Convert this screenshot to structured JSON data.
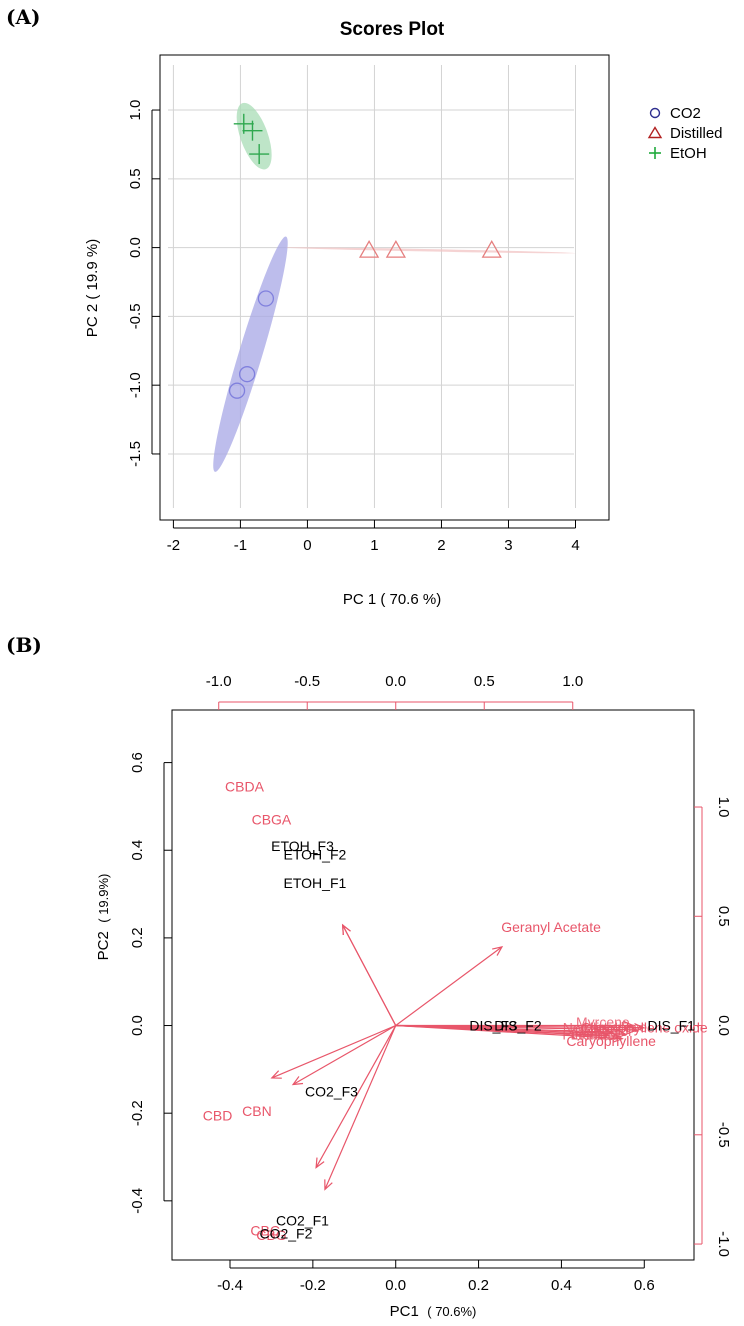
{
  "chart_data": [
    {
      "panel": "(A)",
      "type": "scatter",
      "title": "Scores Plot",
      "xlabel": "PC 1 ( 70.6 %)",
      "ylabel": "PC 2 ( 19.9 %)",
      "xlim": [
        -2.2,
        4.5
      ],
      "ylim": [
        -1.98,
        1.4
      ],
      "xticks": [
        "-2",
        "-1",
        "0",
        "1",
        "2",
        "3",
        "4"
      ],
      "yticks": [
        "-1.5",
        "-1.0",
        "-0.5",
        "0.0",
        "0.5",
        "1.0"
      ],
      "legend": {
        "position": "top-right",
        "entries": [
          {
            "label": "CO2",
            "symbol": "circle",
            "color": "#2e2e8f"
          },
          {
            "label": "Distilled",
            "symbol": "triangle",
            "color": "#b22222"
          },
          {
            "label": "EtOH",
            "symbol": "plus",
            "color": "#1faa3c"
          }
        ]
      },
      "series": [
        {
          "name": "CO2",
          "marker": "circle",
          "color": "#8080dd",
          "ellipse_fill": "#a7a7e6",
          "points": [
            {
              "x": -1.05,
              "y": -1.04
            },
            {
              "x": -0.9,
              "y": -0.92
            },
            {
              "x": -0.62,
              "y": -0.37
            }
          ],
          "ellipse_ends": [
            {
              "x": -1.38,
              "y": -1.63
            },
            {
              "x": -0.32,
              "y": 0.08
            }
          ],
          "ellipse_minor": 0.085
        },
        {
          "name": "Distilled",
          "marker": "triangle",
          "color": "#e57f7f",
          "ellipse_fill": "#f2c4c4",
          "points": [
            {
              "x": 0.92,
              "y": -0.02
            },
            {
              "x": 1.32,
              "y": -0.02
            },
            {
              "x": 2.75,
              "y": -0.02
            }
          ],
          "ellipse_ends": [
            {
              "x": -0.32,
              "y": 0.0
            },
            {
              "x": 4.0,
              "y": -0.04
            }
          ],
          "ellipse_minor": 0.006
        },
        {
          "name": "EtOH",
          "marker": "plus",
          "color": "#2fa84f",
          "ellipse_fill": "#a8dcb5",
          "points": [
            {
              "x": -0.95,
              "y": 0.9
            },
            {
              "x": -0.82,
              "y": 0.85
            },
            {
              "x": -0.72,
              "y": 0.68
            }
          ],
          "ellipse_ends": [
            {
              "x": -0.97,
              "y": 1.05
            },
            {
              "x": -0.62,
              "y": 0.57
            }
          ],
          "ellipse_minor": 0.1
        }
      ]
    },
    {
      "panel": "(B)",
      "type": "scatter",
      "subtype": "biplot",
      "xlabel": "PC1",
      "xlabel_pct": "( 70.6%)",
      "ylabel": "PC2",
      "ylabel_pct": "( 19.9%)",
      "xlim": [
        -0.54,
        0.72
      ],
      "ylim": [
        -0.535,
        0.72
      ],
      "xticks": [
        "-0.4",
        "-0.2",
        "0.0",
        "0.2",
        "0.4",
        "0.6"
      ],
      "yticks": [
        "-0.4",
        "-0.2",
        "0.0",
        "0.2",
        "0.4",
        "0.6"
      ],
      "top_axis_range": [
        -1.264,
        1.685
      ],
      "top_ticks": [
        "-1.0",
        "-0.5",
        "0.0",
        "0.5",
        "1.0"
      ],
      "right_axis_range": [
        -1.073,
        1.444
      ],
      "right_ticks": [
        "-1.0",
        "-0.5",
        "0.0",
        "0.5",
        "1.0"
      ],
      "observations": [
        {
          "label": "ETOH_F3",
          "x": -0.225,
          "y": 0.41
        },
        {
          "label": "ETOH_F2",
          "x": -0.195,
          "y": 0.39
        },
        {
          "label": "ETOH_F1",
          "x": -0.195,
          "y": 0.325
        },
        {
          "label": "DIS_F3",
          "x": 0.235,
          "y": 0.0
        },
        {
          "label": "DIS_F2",
          "x": 0.295,
          "y": 0.0
        },
        {
          "label": "DIS_F1",
          "x": 0.665,
          "y": 0.0
        },
        {
          "label": "CO2_F3",
          "x": -0.155,
          "y": -0.15
        },
        {
          "label": "CO2_F1",
          "x": -0.225,
          "y": -0.445
        },
        {
          "label": "CO2_F2",
          "x": -0.265,
          "y": -0.475
        }
      ],
      "variables": [
        {
          "label": "CBDA",
          "x": -0.3,
          "y": 0.46,
          "label_x": -0.365,
          "label_y": 0.545
        },
        {
          "label": "CBGA",
          "x": -0.3,
          "y": 0.46,
          "label_x": -0.3,
          "label_y": 0.47
        },
        {
          "label": "Geranyl Acetate",
          "x": 0.6,
          "y": 0.36,
          "label_x": 0.375,
          "label_y": 0.225
        },
        {
          "label": "CBD",
          "x": -0.7,
          "y": -0.24,
          "label_x": -0.43,
          "label_y": -0.205
        },
        {
          "label": "CBN",
          "x": -0.58,
          "y": -0.27,
          "label_x": -0.335,
          "label_y": -0.195
        },
        {
          "label": "CBC",
          "x": -0.45,
          "y": -0.65,
          "label_x": -0.315,
          "label_y": -0.468
        },
        {
          "label": "CBG",
          "x": -0.4,
          "y": -0.75,
          "label_x": -0.3,
          "label_y": -0.478
        },
        {
          "label": "Caryophyllene",
          "x": 1.28,
          "y": -0.06,
          "label_x": 0.52,
          "label_y": -0.035
        },
        {
          "label": "Humulene",
          "x": 1.36,
          "y": -0.02,
          "label_x": 0.53,
          "label_y": -0.003
        },
        {
          "label": "Bisabolol",
          "x": 1.34,
          "y": 0.0,
          "label_x": 0.5,
          "label_y": -0.012
        },
        {
          "label": "Nerolidol",
          "x": 1.3,
          "y": -0.04,
          "label_x": 0.47,
          "label_y": -0.005
        },
        {
          "label": "Caryophyllene oxide",
          "x": 1.4,
          "y": -0.01,
          "label_x": 0.6,
          "label_y": -0.005
        },
        {
          "label": "Linalool",
          "x": 1.2,
          "y": -0.045,
          "label_x": 0.48,
          "label_y": -0.02
        },
        {
          "label": "Pinene",
          "x": 1.22,
          "y": -0.03,
          "label_x": 0.455,
          "label_y": -0.02
        },
        {
          "label": "Myrcene",
          "x": 1.26,
          "y": -0.05,
          "label_x": 0.5,
          "label_y": 0.008
        }
      ],
      "hidden_label_indices": [
        8,
        9,
        10,
        12,
        13,
        14
      ],
      "arrow_color": "#e8566a"
    }
  ]
}
